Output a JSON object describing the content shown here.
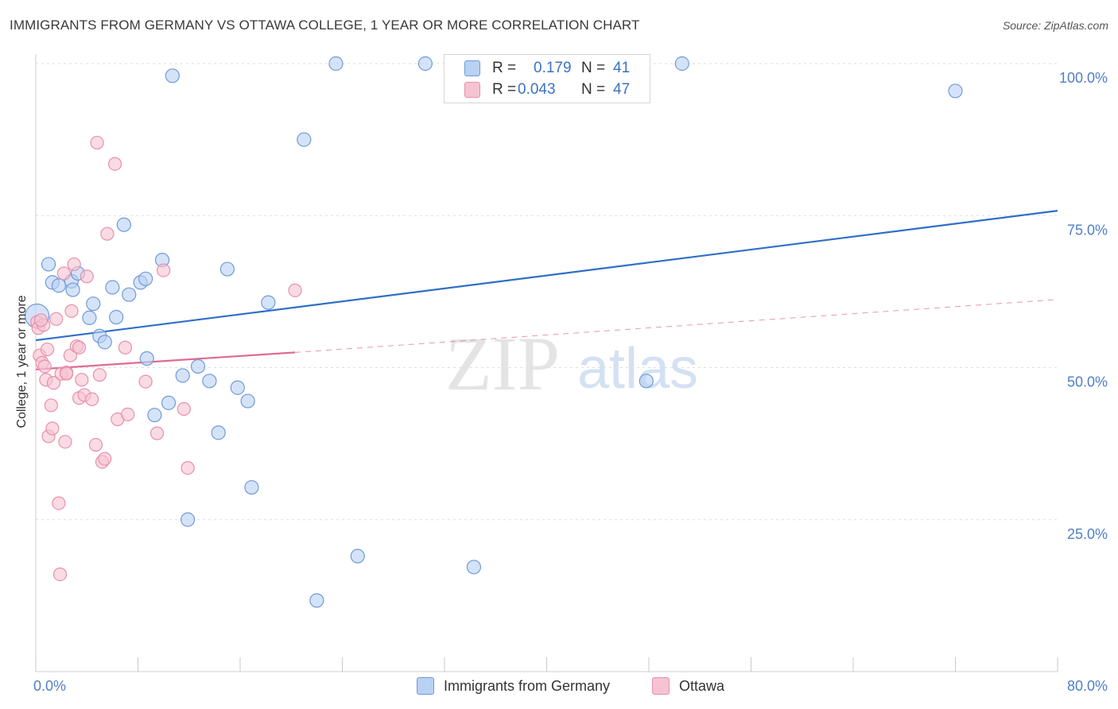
{
  "title": "IMMIGRANTS FROM GERMANY VS OTTAWA COLLEGE, 1 YEAR OR MORE CORRELATION CHART",
  "source": "Source: ZipAtlas.com",
  "watermark": {
    "zip": "ZIP",
    "atlas": "atlas"
  },
  "legend": {
    "r_label": "R =",
    "n_label": "N =",
    "rows": [
      {
        "r": "0.179",
        "n": "41"
      },
      {
        "r": "0.043",
        "n": "47"
      }
    ]
  },
  "colors": {
    "blue_fill": "#b9d1f3",
    "blue_stroke": "#6f9bd8",
    "blue_line": "#2f6fc6",
    "pink_fill": "#f6c3d2",
    "pink_stroke": "#e890aa",
    "pink_line": "#e06a92",
    "axis_text": "#4f7fc8"
  },
  "chart_data": {
    "type": "scatter",
    "ylabel": "College, 1 year or more",
    "xlim": [
      0,
      80
    ],
    "ylim": [
      0,
      100
    ],
    "x_tick_labels": [
      "0.0%",
      "80.0%"
    ],
    "y_ticks": [
      25,
      50,
      75,
      100
    ],
    "y_tick_labels": [
      "25.0%",
      "50.0%",
      "75.0%",
      "100.0%"
    ],
    "grid": true,
    "series": [
      {
        "name": "Immigrants from Germany",
        "color": "blue",
        "points": [
          [
            0.1,
            58.5
          ],
          [
            1.0,
            67.0
          ],
          [
            1.3,
            64.0
          ],
          [
            1.8,
            63.5
          ],
          [
            2.8,
            64.2
          ],
          [
            2.9,
            62.8
          ],
          [
            3.3,
            65.5
          ],
          [
            4.2,
            58.2
          ],
          [
            4.5,
            60.5
          ],
          [
            5.0,
            55.2
          ],
          [
            5.4,
            54.2
          ],
          [
            6.0,
            63.2
          ],
          [
            6.3,
            58.3
          ],
          [
            6.9,
            73.5
          ],
          [
            7.3,
            62.0
          ],
          [
            8.2,
            64.0
          ],
          [
            8.6,
            64.6
          ],
          [
            8.7,
            51.5
          ],
          [
            9.3,
            42.2
          ],
          [
            9.9,
            67.7
          ],
          [
            10.4,
            44.2
          ],
          [
            10.7,
            98.0
          ],
          [
            11.5,
            48.7
          ],
          [
            11.9,
            25.0
          ],
          [
            12.7,
            50.2
          ],
          [
            13.6,
            47.8
          ],
          [
            14.3,
            39.3
          ],
          [
            15.0,
            66.2
          ],
          [
            15.8,
            46.7
          ],
          [
            16.6,
            44.5
          ],
          [
            16.9,
            30.3
          ],
          [
            18.2,
            60.7
          ],
          [
            21.0,
            87.5
          ],
          [
            22.0,
            11.7
          ],
          [
            23.5,
            100.0
          ],
          [
            25.2,
            19.0
          ],
          [
            30.5,
            100.0
          ],
          [
            34.3,
            17.2
          ],
          [
            47.8,
            47.8
          ],
          [
            50.6,
            100.0
          ],
          [
            72.0,
            95.5
          ]
        ]
      },
      {
        "name": "Ottawa",
        "color": "pink",
        "points": [
          [
            0.1,
            57.5
          ],
          [
            0.2,
            56.5
          ],
          [
            0.3,
            52.0
          ],
          [
            0.5,
            50.8
          ],
          [
            0.6,
            57.0
          ],
          [
            0.7,
            50.2
          ],
          [
            0.8,
            48.0
          ],
          [
            0.9,
            53.0
          ],
          [
            1.0,
            38.7
          ],
          [
            1.2,
            43.8
          ],
          [
            1.3,
            40.0
          ],
          [
            1.4,
            47.5
          ],
          [
            1.6,
            58.0
          ],
          [
            1.8,
            27.7
          ],
          [
            1.9,
            16.0
          ],
          [
            2.0,
            49.0
          ],
          [
            2.2,
            65.5
          ],
          [
            2.3,
            37.8
          ],
          [
            2.4,
            49.2
          ],
          [
            2.7,
            52.0
          ],
          [
            2.8,
            59.3
          ],
          [
            3.0,
            67.0
          ],
          [
            3.2,
            53.5
          ],
          [
            3.4,
            53.3
          ],
          [
            3.4,
            45.0
          ],
          [
            3.6,
            48.0
          ],
          [
            3.8,
            45.5
          ],
          [
            4.0,
            65.0
          ],
          [
            4.4,
            44.8
          ],
          [
            4.7,
            37.3
          ],
          [
            4.8,
            87.0
          ],
          [
            5.0,
            48.8
          ],
          [
            5.2,
            34.5
          ],
          [
            5.4,
            35.0
          ],
          [
            5.6,
            72.0
          ],
          [
            6.2,
            83.5
          ],
          [
            6.4,
            41.5
          ],
          [
            7.0,
            53.3
          ],
          [
            7.2,
            42.3
          ],
          [
            8.6,
            47.7
          ],
          [
            9.5,
            39.2
          ],
          [
            10.0,
            66.0
          ],
          [
            11.6,
            43.2
          ],
          [
            11.9,
            33.5
          ],
          [
            20.3,
            62.7
          ],
          [
            2.4,
            49.0
          ],
          [
            0.4,
            57.8
          ]
        ]
      }
    ],
    "trend_lines": [
      {
        "series": "Immigrants from Germany",
        "x": [
          0,
          80
        ],
        "y": [
          54.5,
          75.8
        ],
        "style": "solid"
      },
      {
        "series": "Ottawa",
        "x": [
          0,
          20.3
        ],
        "y": [
          49.7,
          52.5
        ],
        "style": "solid"
      },
      {
        "series": "Ottawa",
        "x": [
          20.3,
          80
        ],
        "y": [
          52.5,
          61.2
        ],
        "style": "dashed"
      }
    ]
  }
}
